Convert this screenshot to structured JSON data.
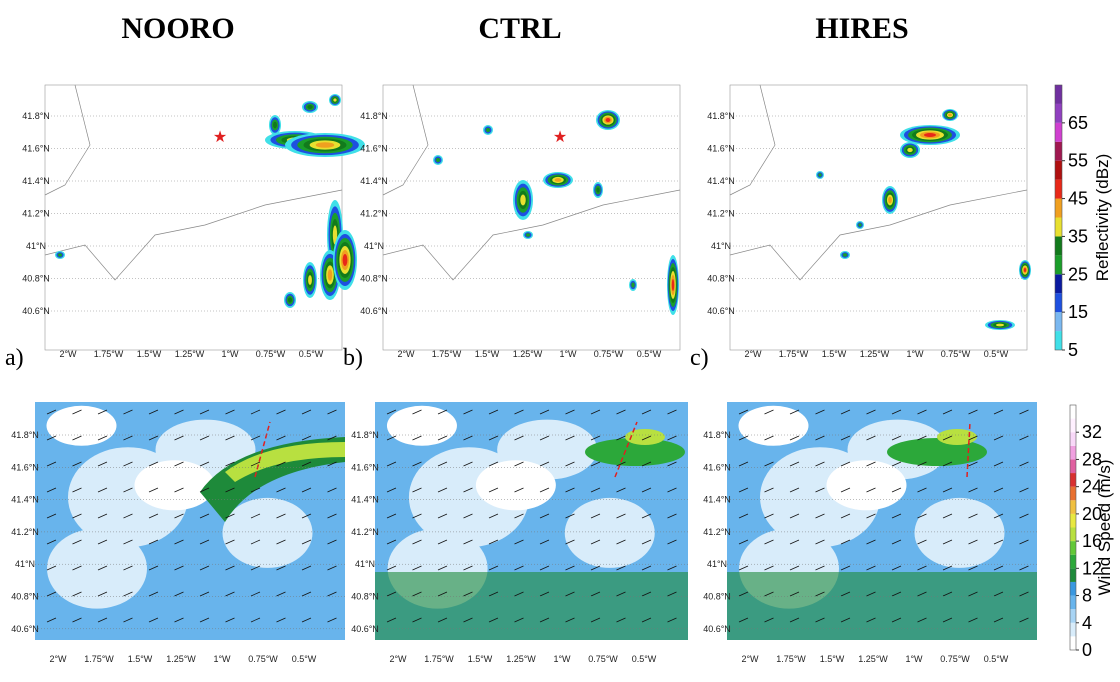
{
  "column_titles": [
    "NOORO",
    "CTRL",
    "HIRES"
  ],
  "panel_labels": [
    "a)",
    "b)",
    "c)"
  ],
  "lat_labels": [
    "41.8°N",
    "41.6°N",
    "41.4°N",
    "41.2°N",
    "41°N",
    "40.8°N",
    "40.6°N"
  ],
  "lon_labels": [
    "2°W",
    "1.75°W",
    "1.5°W",
    "1.25°W",
    "1°W",
    "0.75°W",
    "0.5°W"
  ],
  "colorbars": [
    {
      "label": "Reflectivity (dBz)",
      "lim": [
        5,
        75
      ],
      "ticks": [
        5,
        15,
        25,
        35,
        45,
        55,
        65
      ],
      "colors": [
        "#40e0e8",
        "#7ab8f0",
        "#1e50e0",
        "#0a1aa0",
        "#1a9e2a",
        "#127a1c",
        "#e8e030",
        "#f0a020",
        "#e82818",
        "#b01010",
        "#a01850",
        "#d040d0",
        "#9040c0",
        "#7030a0"
      ]
    },
    {
      "label": "Wind Speed (m/s)",
      "lim": [
        0,
        36
      ],
      "ticks": [
        0,
        4,
        8,
        12,
        16,
        20,
        24,
        28,
        32
      ],
      "colors": [
        "#ffffff",
        "#d8ecfa",
        "#a8d4f4",
        "#68b4ec",
        "#3a98e0",
        "#1e8a3a",
        "#2ca83a",
        "#62c838",
        "#b8e040",
        "#e8e840",
        "#f0c040",
        "#e87030",
        "#d83030",
        "#e060a0",
        "#f0a0e0",
        "#f8d8f8",
        "#fff0ff",
        "#ffffff"
      ]
    }
  ]
}
